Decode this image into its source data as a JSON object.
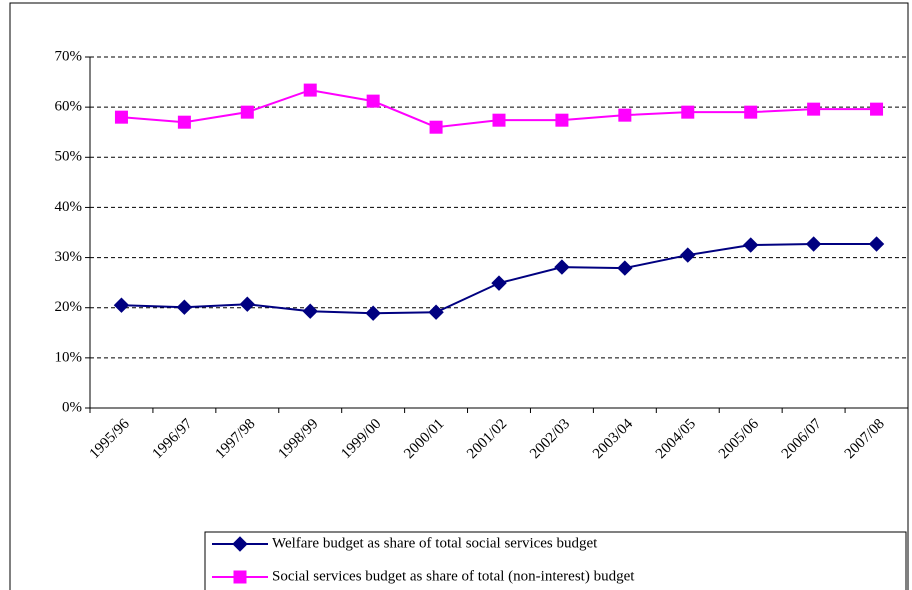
{
  "chart_data": {
    "type": "line",
    "categories": [
      "1995/96",
      "1996/97",
      "1997/98",
      "1998/99",
      "1999/00",
      "2000/01",
      "2001/02",
      "2002/03",
      "2003/04",
      "2004/05",
      "2005/06",
      "2006/07",
      "2007/08"
    ],
    "series": [
      {
        "name": "Welfare budget as share of total social services budget",
        "color": "#000080",
        "marker": "diamond",
        "values": [
          20.5,
          20.1,
          20.7,
          19.3,
          18.9,
          19.1,
          24.9,
          28.1,
          27.9,
          30.5,
          32.5,
          32.7,
          32.7
        ]
      },
      {
        "name": "Social services budget as share of total (non-interest) budget",
        "color": "#ff00ff",
        "marker": "square",
        "values": [
          58.0,
          57.0,
          59.0,
          63.4,
          61.2,
          56.0,
          57.4,
          57.4,
          58.4,
          59.0,
          59.0,
          59.6,
          59.6
        ]
      }
    ],
    "ylim": [
      0,
      70
    ],
    "yticks": [
      {
        "value": 0,
        "label": "0%"
      },
      {
        "value": 10,
        "label": "10%"
      },
      {
        "value": 20,
        "label": "20%"
      },
      {
        "value": 30,
        "label": "30%"
      },
      {
        "value": 40,
        "label": "40%"
      },
      {
        "value": 50,
        "label": "50%"
      },
      {
        "value": 60,
        "label": "60%"
      },
      {
        "value": 70,
        "label": "70%"
      }
    ],
    "grid": true
  }
}
